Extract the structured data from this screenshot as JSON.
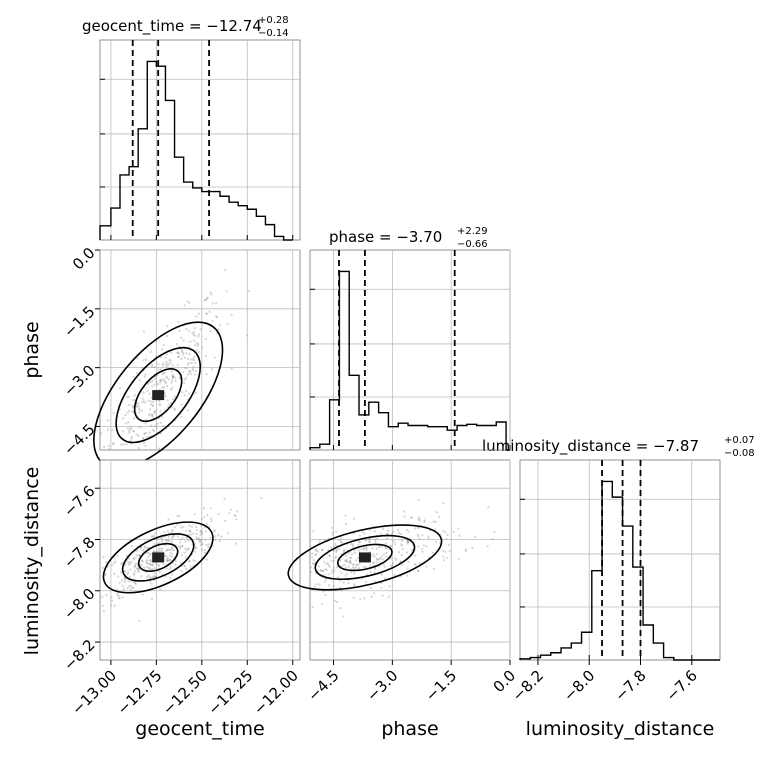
{
  "chart_data": {
    "type": "corner",
    "parameters": [
      {
        "name": "geocent_time",
        "label": "geocent_time",
        "median": "−12.74",
        "upper_err": "+0.28",
        "lower_err": "−0.14",
        "range": [
          -13.06,
          -11.96
        ],
        "ticks": [
          -13.0,
          -12.75,
          -12.5,
          -12.25,
          -12.0
        ],
        "tick_labels": [
          "−13.00",
          "−12.75",
          "−12.50",
          "−12.25",
          "−12.00"
        ],
        "quantiles": [
          -12.88,
          -12.74,
          -12.46
        ]
      },
      {
        "name": "phase",
        "label": "phase",
        "median": "−3.70",
        "upper_err": "+2.29",
        "lower_err": "−0.66",
        "range": [
          -5.1,
          0.0
        ],
        "ticks": [
          -4.5,
          -3.0,
          -1.5,
          0.0
        ],
        "tick_labels": [
          "−4.5",
          "−3.0",
          "−1.5",
          "0.0"
        ],
        "quantiles": [
          -4.36,
          -3.7,
          -1.41
        ]
      },
      {
        "name": "luminosity_distance",
        "label": "luminosity_distance",
        "median": "−7.87",
        "upper_err": "+0.07",
        "lower_err": "−0.08",
        "range": [
          -8.27,
          -7.49
        ],
        "ticks": [
          -8.2,
          -8.0,
          -7.8,
          -7.6
        ],
        "tick_labels": [
          "−8.2",
          "−8.0",
          "−7.8",
          "−7.6"
        ],
        "quantiles": [
          -7.95,
          -7.87,
          -7.8
        ]
      }
    ],
    "titles": [
      {
        "text": "geocent_time = −12.74",
        "sup": "+0.28",
        "sub": "−0.14"
      },
      {
        "text": "phase = −3.70",
        "sup": "+2.29",
        "sub": "−0.66"
      },
      {
        "text": "luminosity_distance = −7.87",
        "sup": "+0.07",
        "sub": "−0.08"
      }
    ],
    "histograms": [
      {
        "param": "geocent_time",
        "bins": [
          -13.06,
          -13.0,
          -12.95,
          -12.9,
          -12.85,
          -12.8,
          -12.75,
          -12.7,
          -12.65,
          -12.6,
          -12.55,
          -12.5,
          -12.45,
          -12.4,
          -12.35,
          -12.3,
          -12.25,
          -12.2,
          -12.15,
          -12.1,
          -12.05,
          -12.0
        ],
        "counts": [
          12,
          27,
          55,
          62,
          94,
          151,
          147,
          118,
          70,
          49,
          44,
          41,
          41,
          37,
          32,
          29,
          26,
          20,
          13,
          3,
          0
        ]
      },
      {
        "param": "phase",
        "bins": [
          -5.1,
          -4.85,
          -4.6,
          -4.35,
          -4.1,
          -3.85,
          -3.6,
          -3.35,
          -3.1,
          -2.85,
          -2.6,
          -2.35,
          -2.1,
          -1.85,
          -1.6,
          -1.35,
          -1.1,
          -0.85,
          -0.6,
          -0.35,
          -0.1,
          0.0
        ],
        "counts": [
          2,
          5,
          43,
          153,
          64,
          30,
          41,
          32,
          20,
          23,
          21,
          21,
          20,
          20,
          17,
          21,
          22,
          21,
          21,
          24,
          0
        ]
      },
      {
        "param": "luminosity_distance",
        "bins": [
          -8.27,
          -8.23,
          -8.19,
          -8.15,
          -8.11,
          -8.07,
          -8.03,
          -7.99,
          -7.95,
          -7.91,
          -7.87,
          -7.83,
          -7.79,
          -7.75,
          -7.71,
          -7.67,
          -7.63,
          -7.59,
          -7.55,
          -7.51,
          -7.49
        ],
        "counts": [
          1,
          2,
          4,
          6,
          10,
          14,
          23,
          74,
          148,
          135,
          111,
          77,
          29,
          14,
          2,
          0,
          0,
          0,
          0,
          0
        ]
      }
    ],
    "samples_2d": {
      "phase_vs_geocent_time": {
        "x": -12.74,
        "y": -3.7,
        "sx": 0.18,
        "sy": 1.2,
        "correlation": 0.85
      },
      "luminosity_distance_vs_geocent_time": {
        "x": -12.74,
        "y": -7.87,
        "sx": 0.18,
        "sy": 0.08,
        "correlation": 0.75
      },
      "luminosity_distance_vs_phase": {
        "x": -3.7,
        "y": -7.87,
        "sx": 1.2,
        "sy": 0.08,
        "correlation": 0.55
      }
    },
    "grid": true,
    "quantile_line_style": "dashed"
  }
}
